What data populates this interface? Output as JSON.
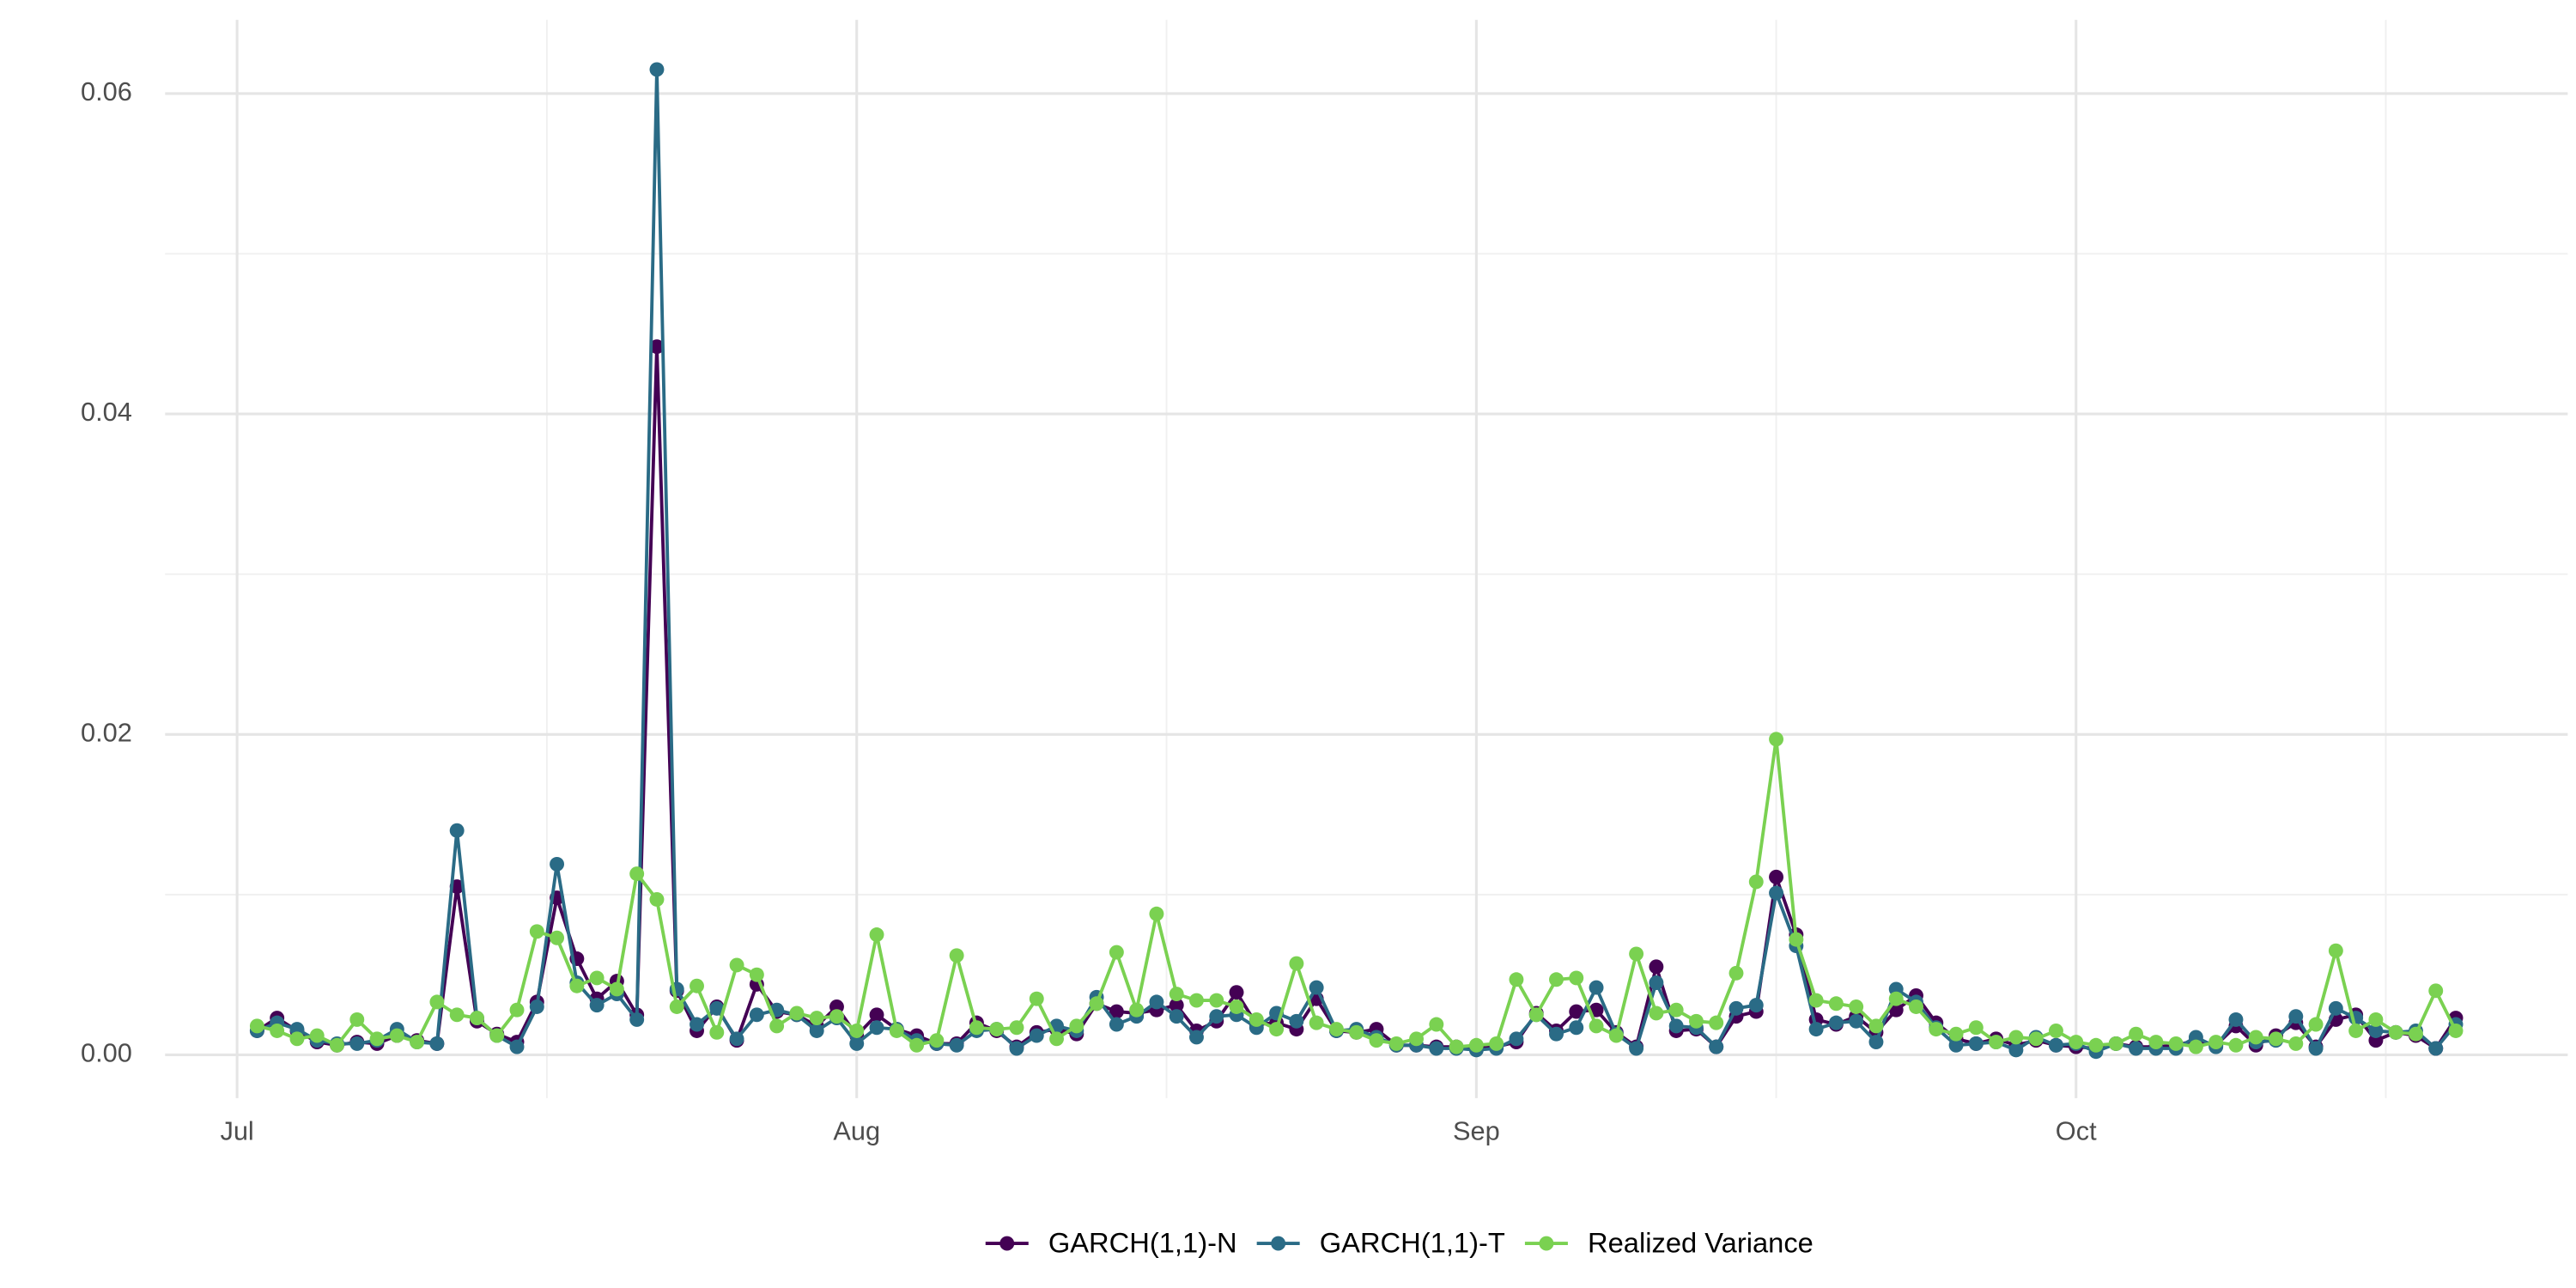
{
  "chart_data": {
    "type": "line",
    "x": [
      1,
      2,
      3,
      4,
      5,
      6,
      7,
      8,
      9,
      10,
      11,
      12,
      13,
      14,
      15,
      16,
      17,
      18,
      19,
      20,
      21,
      22,
      23,
      24,
      25,
      26,
      27,
      28,
      29,
      30,
      31,
      32,
      33,
      34,
      35,
      36,
      37,
      38,
      39,
      40,
      41,
      42,
      43,
      44,
      45,
      46,
      47,
      48,
      49,
      50,
      51,
      52,
      53,
      54,
      55,
      56,
      57,
      58,
      59,
      60,
      61,
      62,
      63,
      64,
      65,
      66,
      67,
      68,
      69,
      70,
      71,
      72,
      73,
      74,
      75,
      76,
      77,
      78,
      79,
      80,
      81,
      82,
      83,
      84,
      85,
      86,
      87,
      88,
      89,
      90,
      91,
      92,
      93,
      94,
      95,
      96,
      97,
      98,
      99,
      100,
      101,
      102,
      103,
      104,
      105,
      106,
      107,
      108,
      109,
      110,
      111
    ],
    "series": [
      {
        "name": "GARCH(1,1)-N",
        "color": "#440154",
        "values": [
          0.0015,
          0.0023,
          0.0015,
          0.0008,
          0.0006,
          0.0008,
          0.0007,
          0.0012,
          0.0009,
          0.0007,
          0.0105,
          0.0021,
          0.0013,
          0.0008,
          0.0033,
          0.0098,
          0.006,
          0.0035,
          0.0046,
          0.0025,
          0.0442,
          0.004,
          0.0015,
          0.003,
          0.0009,
          0.0044,
          0.0027,
          0.0025,
          0.0018,
          0.003,
          0.0012,
          0.0025,
          0.0016,
          0.0012,
          0.0007,
          0.0007,
          0.002,
          0.0015,
          0.0005,
          0.0014,
          0.0016,
          0.0013,
          0.0032,
          0.0027,
          0.0026,
          0.0028,
          0.0031,
          0.0015,
          0.0021,
          0.0039,
          0.0019,
          0.002,
          0.0016,
          0.0035,
          0.0015,
          0.0014,
          0.0016,
          0.0006,
          0.0006,
          0.0005,
          0.0005,
          0.0004,
          0.0005,
          0.0008,
          0.0026,
          0.0015,
          0.0027,
          0.0028,
          0.0014,
          0.0005,
          0.0055,
          0.0015,
          0.0016,
          0.0005,
          0.0024,
          0.0027,
          0.0111,
          0.0075,
          0.0022,
          0.0019,
          0.0024,
          0.0014,
          0.0028,
          0.0037,
          0.002,
          0.001,
          0.0007,
          0.001,
          0.0006,
          0.0009,
          0.0006,
          0.0005,
          0.0004,
          0.0007,
          0.0005,
          0.0005,
          0.0006,
          0.0009,
          0.0006,
          0.0018,
          0.0006,
          0.0012,
          0.002,
          0.0005,
          0.0022,
          0.0025,
          0.0009,
          0.0014,
          0.0012,
          0.0004,
          0.0023
        ]
      },
      {
        "name": "GARCH(1,1)-T",
        "color": "#2a6b86",
        "values": [
          0.0015,
          0.002,
          0.0016,
          0.0009,
          0.0007,
          0.0007,
          0.0009,
          0.0016,
          0.0008,
          0.0007,
          0.014,
          0.0023,
          0.0012,
          0.0005,
          0.003,
          0.0119,
          0.0045,
          0.0031,
          0.0038,
          0.0022,
          0.0615,
          0.0041,
          0.0019,
          0.0029,
          0.001,
          0.0025,
          0.0028,
          0.0025,
          0.0015,
          0.0023,
          0.0007,
          0.0017,
          0.0016,
          0.0009,
          0.0007,
          0.0006,
          0.0015,
          0.0016,
          0.0004,
          0.0012,
          0.0018,
          0.0015,
          0.0036,
          0.0019,
          0.0024,
          0.0033,
          0.0024,
          0.0011,
          0.0024,
          0.0025,
          0.0017,
          0.0026,
          0.0021,
          0.0042,
          0.0015,
          0.0016,
          0.0011,
          0.0006,
          0.0006,
          0.0004,
          0.0004,
          0.0003,
          0.0004,
          0.001,
          0.0025,
          0.0013,
          0.0017,
          0.0042,
          0.0013,
          0.0004,
          0.0045,
          0.0018,
          0.0017,
          0.0005,
          0.0029,
          0.0031,
          0.0101,
          0.0068,
          0.0016,
          0.002,
          0.0021,
          0.0008,
          0.0041,
          0.0033,
          0.0017,
          0.0006,
          0.0007,
          0.0008,
          0.0003,
          0.0011,
          0.0006,
          0.0007,
          0.0002,
          0.0007,
          0.0004,
          0.0004,
          0.0004,
          0.0011,
          0.0005,
          0.0022,
          0.0008,
          0.0009,
          0.0024,
          0.0004,
          0.0029,
          0.0023,
          0.0015,
          0.0014,
          0.0015,
          0.0004,
          0.0019
        ]
      },
      {
        "name": "Realized Variance",
        "color": "#7ad151",
        "values": [
          0.0018,
          0.0015,
          0.001,
          0.0012,
          0.0006,
          0.0022,
          0.001,
          0.0012,
          0.0008,
          0.0033,
          0.0025,
          0.0023,
          0.0012,
          0.0028,
          0.0077,
          0.0073,
          0.0043,
          0.0048,
          0.0041,
          0.0113,
          0.0097,
          0.003,
          0.0043,
          0.0014,
          0.0056,
          0.005,
          0.0018,
          0.0026,
          0.0023,
          0.0024,
          0.0015,
          0.0075,
          0.0015,
          0.0006,
          0.0009,
          0.0062,
          0.0017,
          0.0016,
          0.0017,
          0.0035,
          0.001,
          0.0018,
          0.0032,
          0.0064,
          0.0028,
          0.0088,
          0.0038,
          0.0034,
          0.0034,
          0.003,
          0.0022,
          0.0016,
          0.0057,
          0.002,
          0.0016,
          0.0014,
          0.0009,
          0.0007,
          0.001,
          0.0019,
          0.0005,
          0.0006,
          0.0007,
          0.0047,
          0.0025,
          0.0047,
          0.0048,
          0.0018,
          0.0012,
          0.0063,
          0.0026,
          0.0028,
          0.0021,
          0.002,
          0.0051,
          0.0108,
          0.0197,
          0.0072,
          0.0034,
          0.0032,
          0.003,
          0.0018,
          0.0035,
          0.003,
          0.0016,
          0.0013,
          0.0017,
          0.0008,
          0.0011,
          0.001,
          0.0015,
          0.0008,
          0.0006,
          0.0007,
          0.0013,
          0.0008,
          0.0007,
          0.0005,
          0.0008,
          0.0006,
          0.0011,
          0.001,
          0.0007,
          0.0019,
          0.0065,
          0.0015,
          0.0022,
          0.0014,
          0.0013,
          0.004,
          0.0015
        ]
      }
    ],
    "xlim": [
      -3.6,
      116.6
    ],
    "xticks": [
      {
        "value": 0,
        "label": "Jul"
      },
      {
        "value": 31,
        "label": "Aug"
      },
      {
        "value": 62,
        "label": "Sep"
      },
      {
        "value": 92,
        "label": "Oct"
      }
    ],
    "ylim": [
      -0.0027,
      0.0646
    ],
    "yticks": [
      {
        "value": 0,
        "label": "0.00"
      },
      0.02,
      0.04,
      0.06
    ],
    "grid": true,
    "legend": "bottom"
  }
}
